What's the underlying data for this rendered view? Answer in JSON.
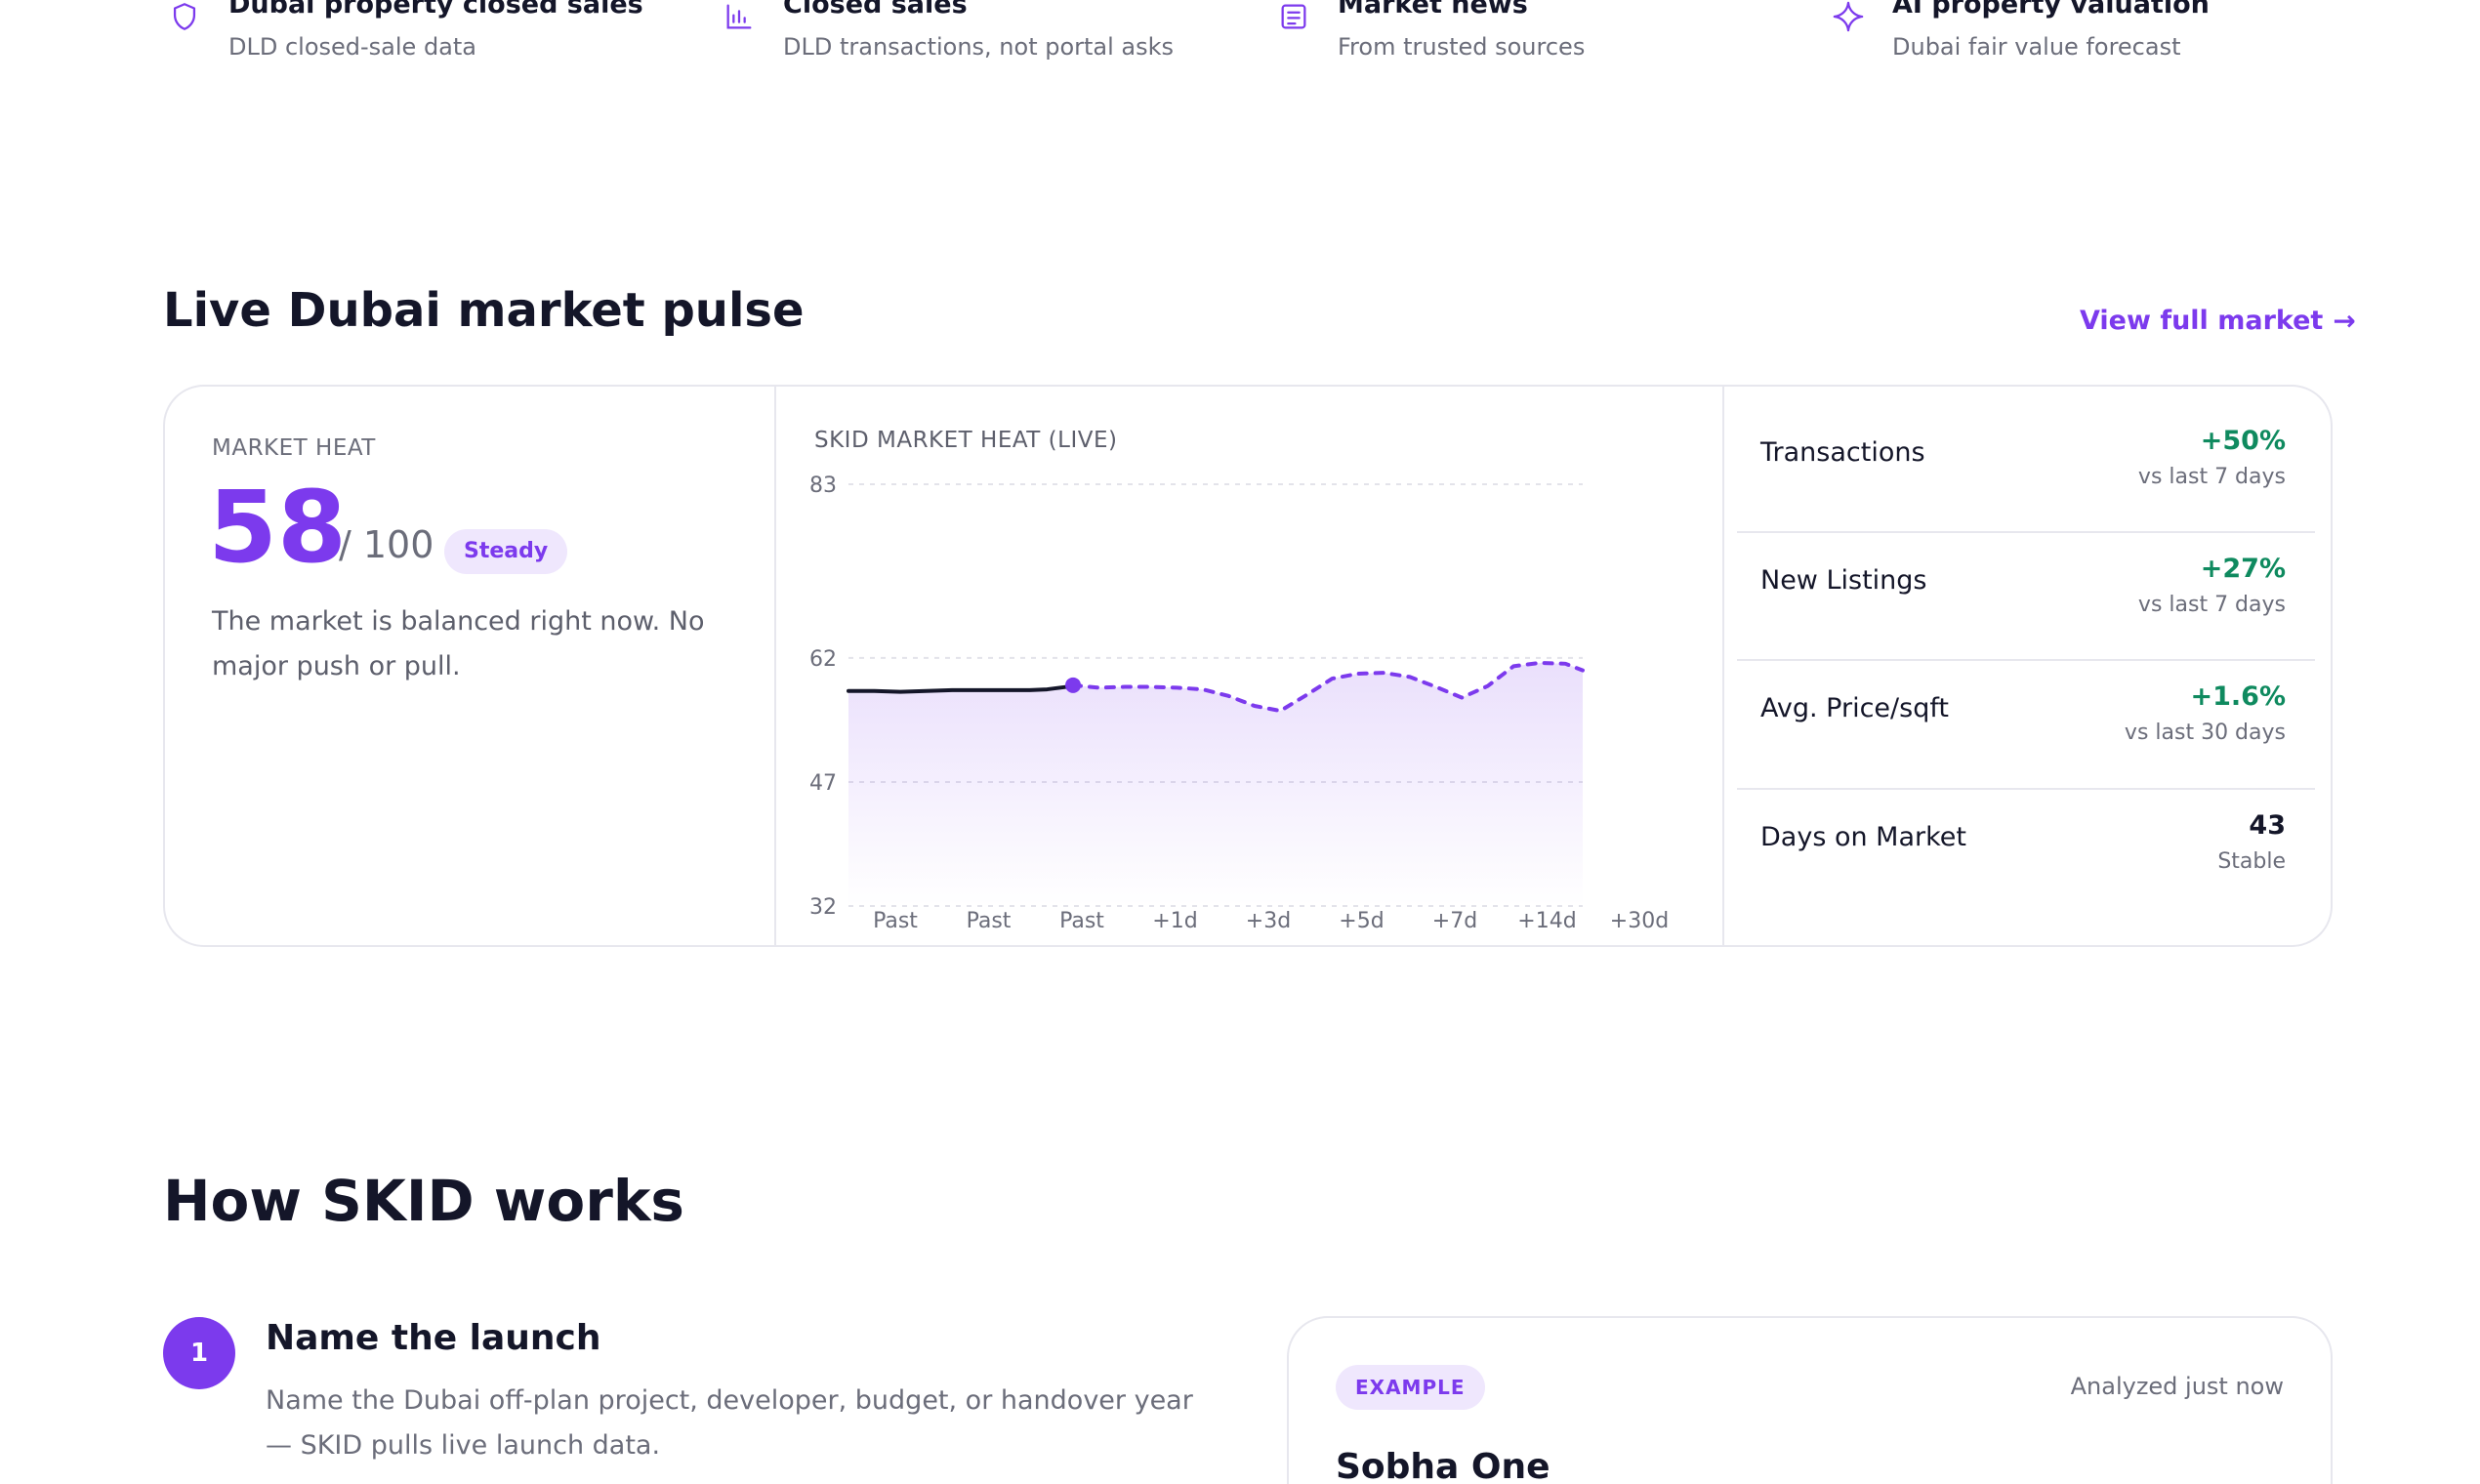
{
  "features": [
    {
      "icon": "shield-icon",
      "title": "Dubai property closed sales",
      "subtitle": "DLD closed-sale data"
    },
    {
      "icon": "bar-chart-icon",
      "title": "Closed sales",
      "subtitle": "DLD transactions, not portal asks"
    },
    {
      "icon": "news-icon",
      "title": "Market news",
      "subtitle": "From trusted sources"
    },
    {
      "icon": "sparkle-icon",
      "title": "AI property valuation",
      "subtitle": "Dubai fair value forecast"
    }
  ],
  "pulse": {
    "title": "Live Dubai market pulse",
    "view_link": "View full market",
    "heat": {
      "label": "MARKET HEAT",
      "score": "58",
      "max": "/ 100",
      "badge": "Steady",
      "description": "The market is balanced right now. No major push or pull."
    },
    "metrics": [
      {
        "name": "Transactions",
        "value": "+50%",
        "note": "vs last 7 days",
        "color": "#0f8a5f"
      },
      {
        "name": "New Listings",
        "value": "+27%",
        "note": "vs last 7 days",
        "color": "#0f8a5f"
      },
      {
        "name": "Avg. Price/sqft",
        "value": "+1.6%",
        "note": "vs last 30 days",
        "color": "#0f8a5f"
      },
      {
        "name": "Days on Market",
        "value": "43",
        "note": "Stable",
        "color": "#141629"
      }
    ]
  },
  "chart_data": {
    "type": "line",
    "title": "SKID MARKET HEAT (LIVE)",
    "ylim": [
      32,
      83
    ],
    "yticks": [
      83,
      62,
      47,
      32
    ],
    "xticks": [
      "Past",
      "Past",
      "Past",
      "+1d",
      "+3d",
      "+5d",
      "+7d",
      "+14d",
      "+30d"
    ],
    "series": [
      {
        "style": "solid",
        "color": "#141629",
        "x": [
          0,
          0.3,
          0.6,
          0.9,
          1.2,
          1.5,
          1.8,
          2.1,
          2.3,
          2.6
        ],
        "y": [
          58,
          58,
          57.9,
          58,
          58.1,
          58.1,
          58.1,
          58.1,
          58.2,
          58.6
        ]
      },
      {
        "style": "dashed",
        "color": "#7c3aed",
        "x": [
          2.6,
          2.9,
          3.2,
          3.5,
          3.8,
          4.1,
          4.4,
          4.7,
          5.0,
          5.3,
          5.6,
          5.9,
          6.2,
          6.5,
          6.8,
          7.1,
          7.4,
          7.7,
          8.0,
          8.3,
          8.5
        ],
        "y": [
          58.7,
          58.4,
          58.5,
          58.5,
          58.4,
          58.2,
          57.4,
          56.2,
          55.6,
          57.5,
          59.5,
          60.1,
          60.2,
          59.7,
          58.5,
          57.2,
          58.6,
          61.0,
          61.4,
          61.3,
          60.5
        ]
      }
    ]
  },
  "how_it_works": {
    "title": "How SKID works",
    "step": {
      "number": "1",
      "title": "Name the launch",
      "description": "Name the Dubai off-plan project, developer, budget, or handover year — SKID pulls live launch data."
    },
    "example": {
      "badge": "EXAMPLE",
      "time": "Analyzed just now",
      "title": "Sobha One"
    }
  }
}
